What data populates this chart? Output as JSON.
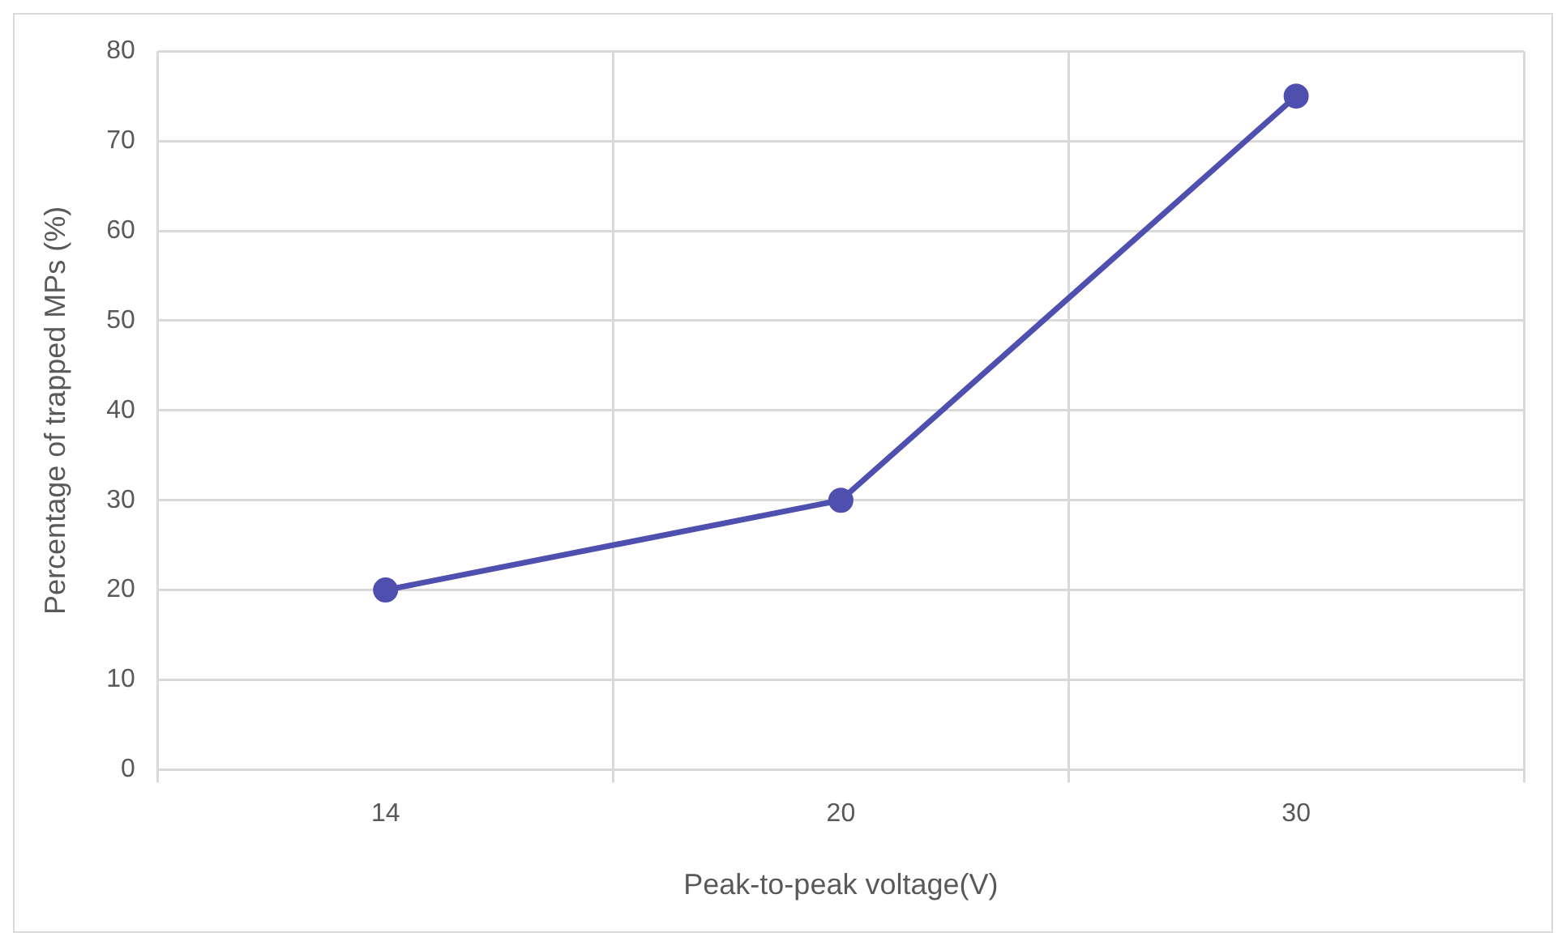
{
  "chart_data": {
    "type": "line",
    "xlabel": "Peak-to-peak voltage(V)",
    "ylabel": "Percentage of trapped MPs (%)",
    "categories": [
      "14",
      "20",
      "30"
    ],
    "series": [
      {
        "color": "#4f4fb0",
        "values": [
          20,
          30,
          75
        ]
      }
    ],
    "ylim": [
      0,
      80
    ],
    "yticks": [
      0,
      10,
      20,
      30,
      40,
      50,
      60,
      70,
      80
    ],
    "grid": true,
    "marker": "circle",
    "line_style": "solid"
  }
}
